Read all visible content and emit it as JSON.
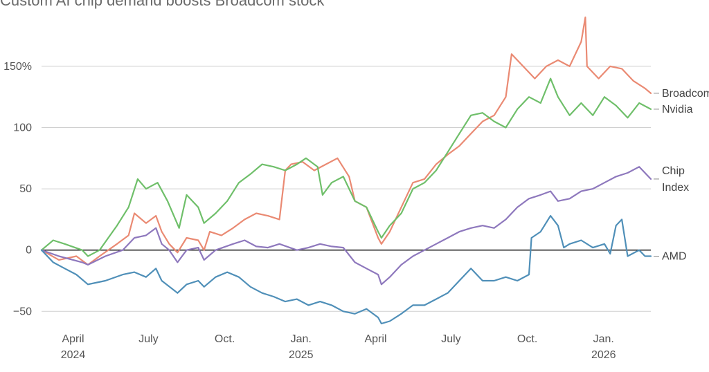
{
  "chart_data": {
    "type": "line",
    "title": "Custom AI chip demand boosts Broadcom stock",
    "xlabel": "",
    "ylabel": "",
    "ylim": [
      -60,
      190
    ],
    "yticks": [
      {
        "value": 150,
        "label": "150%"
      },
      {
        "value": 100,
        "label": "100"
      },
      {
        "value": 50,
        "label": "50"
      },
      {
        "value": 0,
        "label": "0"
      },
      {
        "value": -50,
        "label": "−50"
      }
    ],
    "xlim": [
      "2024-02-23",
      "2026-02-27"
    ],
    "xticks": [
      {
        "date": "2024-04-01",
        "label": "April",
        "year": "2024"
      },
      {
        "date": "2024-07-01",
        "label": "July",
        "year": ""
      },
      {
        "date": "2024-10-01",
        "label": "Oct.",
        "year": ""
      },
      {
        "date": "2025-01-01",
        "label": "Jan.",
        "year": "2025"
      },
      {
        "date": "2025-04-01",
        "label": "April",
        "year": ""
      },
      {
        "date": "2025-07-01",
        "label": "July",
        "year": ""
      },
      {
        "date": "2025-10-01",
        "label": "Oct.",
        "year": ""
      },
      {
        "date": "2026-01-01",
        "label": "Jan.",
        "year": "2026"
      }
    ],
    "grid": true,
    "series": [
      {
        "name": "Broadcom",
        "label_lines": [
          "Broadcom"
        ],
        "color": "#ea8a73",
        "points": [
          [
            "2024-02-23",
            0
          ],
          [
            "2024-03-15",
            -8
          ],
          [
            "2024-04-05",
            -5
          ],
          [
            "2024-04-19",
            -12
          ],
          [
            "2024-05-03",
            -5
          ],
          [
            "2024-05-24",
            5
          ],
          [
            "2024-06-07",
            12
          ],
          [
            "2024-06-14",
            30
          ],
          [
            "2024-06-28",
            22
          ],
          [
            "2024-07-10",
            28
          ],
          [
            "2024-07-17",
            15
          ],
          [
            "2024-07-26",
            5
          ],
          [
            "2024-08-05",
            -2
          ],
          [
            "2024-08-16",
            10
          ],
          [
            "2024-08-30",
            8
          ],
          [
            "2024-09-06",
            0
          ],
          [
            "2024-09-13",
            15
          ],
          [
            "2024-09-27",
            12
          ],
          [
            "2024-10-11",
            18
          ],
          [
            "2024-10-25",
            25
          ],
          [
            "2024-11-08",
            30
          ],
          [
            "2024-11-22",
            28
          ],
          [
            "2024-12-06",
            25
          ],
          [
            "2024-12-13",
            65
          ],
          [
            "2024-12-20",
            70
          ],
          [
            "2025-01-03",
            72
          ],
          [
            "2025-01-17",
            65
          ],
          [
            "2025-01-31",
            70
          ],
          [
            "2025-02-14",
            75
          ],
          [
            "2025-02-28",
            60
          ],
          [
            "2025-03-07",
            40
          ],
          [
            "2025-03-21",
            35
          ],
          [
            "2025-04-04",
            10
          ],
          [
            "2025-04-08",
            5
          ],
          [
            "2025-04-18",
            15
          ],
          [
            "2025-05-02",
            35
          ],
          [
            "2025-05-16",
            55
          ],
          [
            "2025-05-30",
            58
          ],
          [
            "2025-06-13",
            70
          ],
          [
            "2025-06-27",
            78
          ],
          [
            "2025-07-11",
            85
          ],
          [
            "2025-07-25",
            95
          ],
          [
            "2025-08-08",
            105
          ],
          [
            "2025-08-22",
            110
          ],
          [
            "2025-09-05",
            125
          ],
          [
            "2025-09-12",
            160
          ],
          [
            "2025-09-26",
            150
          ],
          [
            "2025-10-10",
            140
          ],
          [
            "2025-10-24",
            150
          ],
          [
            "2025-11-07",
            155
          ],
          [
            "2025-11-21",
            150
          ],
          [
            "2025-12-05",
            170
          ],
          [
            "2025-12-10",
            190
          ],
          [
            "2025-12-12",
            150
          ],
          [
            "2025-12-26",
            140
          ],
          [
            "2026-01-09",
            150
          ],
          [
            "2026-01-23",
            148
          ],
          [
            "2026-02-06",
            138
          ],
          [
            "2026-02-20",
            132
          ],
          [
            "2026-02-27",
            128
          ]
        ]
      },
      {
        "name": "Nvidia",
        "label_lines": [
          "Nvidia"
        ],
        "color": "#6fbf6a",
        "points": [
          [
            "2024-02-23",
            0
          ],
          [
            "2024-03-08",
            8
          ],
          [
            "2024-03-22",
            5
          ],
          [
            "2024-04-12",
            0
          ],
          [
            "2024-04-19",
            -5
          ],
          [
            "2024-05-03",
            0
          ],
          [
            "2024-05-24",
            20
          ],
          [
            "2024-06-07",
            35
          ],
          [
            "2024-06-18",
            58
          ],
          [
            "2024-06-28",
            50
          ],
          [
            "2024-07-12",
            55
          ],
          [
            "2024-07-24",
            40
          ],
          [
            "2024-08-07",
            18
          ],
          [
            "2024-08-16",
            45
          ],
          [
            "2024-08-30",
            35
          ],
          [
            "2024-09-06",
            22
          ],
          [
            "2024-09-20",
            30
          ],
          [
            "2024-10-04",
            40
          ],
          [
            "2024-10-18",
            55
          ],
          [
            "2024-11-01",
            62
          ],
          [
            "2024-11-15",
            70
          ],
          [
            "2024-11-29",
            68
          ],
          [
            "2024-12-13",
            65
          ],
          [
            "2024-12-27",
            70
          ],
          [
            "2025-01-07",
            75
          ],
          [
            "2025-01-21",
            68
          ],
          [
            "2025-01-27",
            45
          ],
          [
            "2025-02-07",
            55
          ],
          [
            "2025-02-21",
            60
          ],
          [
            "2025-03-07",
            40
          ],
          [
            "2025-03-21",
            35
          ],
          [
            "2025-04-04",
            15
          ],
          [
            "2025-04-08",
            10
          ],
          [
            "2025-04-18",
            20
          ],
          [
            "2025-05-02",
            30
          ],
          [
            "2025-05-16",
            50
          ],
          [
            "2025-05-30",
            55
          ],
          [
            "2025-06-13",
            65
          ],
          [
            "2025-06-27",
            80
          ],
          [
            "2025-07-11",
            95
          ],
          [
            "2025-07-25",
            110
          ],
          [
            "2025-08-08",
            112
          ],
          [
            "2025-08-22",
            105
          ],
          [
            "2025-09-05",
            100
          ],
          [
            "2025-09-19",
            115
          ],
          [
            "2025-10-03",
            125
          ],
          [
            "2025-10-17",
            120
          ],
          [
            "2025-10-29",
            140
          ],
          [
            "2025-11-07",
            125
          ],
          [
            "2025-11-21",
            110
          ],
          [
            "2025-12-05",
            120
          ],
          [
            "2025-12-19",
            110
          ],
          [
            "2026-01-02",
            125
          ],
          [
            "2026-01-16",
            118
          ],
          [
            "2026-01-30",
            108
          ],
          [
            "2026-02-13",
            120
          ],
          [
            "2026-02-27",
            115
          ]
        ]
      },
      {
        "name": "Chip Index",
        "label_lines": [
          "Chip",
          "Index"
        ],
        "color": "#8e78bd",
        "points": [
          [
            "2024-02-23",
            0
          ],
          [
            "2024-03-15",
            -5
          ],
          [
            "2024-04-12",
            -10
          ],
          [
            "2024-04-19",
            -12
          ],
          [
            "2024-05-10",
            -5
          ],
          [
            "2024-05-31",
            0
          ],
          [
            "2024-06-14",
            10
          ],
          [
            "2024-06-28",
            12
          ],
          [
            "2024-07-10",
            18
          ],
          [
            "2024-07-17",
            5
          ],
          [
            "2024-07-26",
            0
          ],
          [
            "2024-08-05",
            -10
          ],
          [
            "2024-08-16",
            0
          ],
          [
            "2024-08-30",
            2
          ],
          [
            "2024-09-06",
            -8
          ],
          [
            "2024-09-20",
            0
          ],
          [
            "2024-10-11",
            5
          ],
          [
            "2024-10-25",
            8
          ],
          [
            "2024-11-08",
            3
          ],
          [
            "2024-11-22",
            2
          ],
          [
            "2024-12-06",
            5
          ],
          [
            "2024-12-27",
            0
          ],
          [
            "2025-01-10",
            2
          ],
          [
            "2025-01-24",
            5
          ],
          [
            "2025-02-07",
            3
          ],
          [
            "2025-02-21",
            2
          ],
          [
            "2025-03-07",
            -10
          ],
          [
            "2025-03-21",
            -15
          ],
          [
            "2025-04-04",
            -20
          ],
          [
            "2025-04-08",
            -28
          ],
          [
            "2025-04-18",
            -22
          ],
          [
            "2025-05-02",
            -12
          ],
          [
            "2025-05-16",
            -5
          ],
          [
            "2025-05-30",
            0
          ],
          [
            "2025-06-13",
            5
          ],
          [
            "2025-06-27",
            10
          ],
          [
            "2025-07-11",
            15
          ],
          [
            "2025-07-25",
            18
          ],
          [
            "2025-08-08",
            20
          ],
          [
            "2025-08-22",
            18
          ],
          [
            "2025-09-05",
            25
          ],
          [
            "2025-09-19",
            35
          ],
          [
            "2025-10-03",
            42
          ],
          [
            "2025-10-17",
            45
          ],
          [
            "2025-10-29",
            48
          ],
          [
            "2025-11-07",
            40
          ],
          [
            "2025-11-21",
            42
          ],
          [
            "2025-12-05",
            48
          ],
          [
            "2025-12-19",
            50
          ],
          [
            "2026-01-02",
            55
          ],
          [
            "2026-01-16",
            60
          ],
          [
            "2026-01-30",
            63
          ],
          [
            "2026-02-13",
            68
          ],
          [
            "2026-02-27",
            58
          ]
        ]
      },
      {
        "name": "AMD",
        "label_lines": [
          "AMD"
        ],
        "color": "#4f8fb8",
        "points": [
          [
            "2024-02-23",
            0
          ],
          [
            "2024-03-08",
            -10
          ],
          [
            "2024-03-22",
            -15
          ],
          [
            "2024-04-05",
            -20
          ],
          [
            "2024-04-19",
            -28
          ],
          [
            "2024-05-10",
            -25
          ],
          [
            "2024-05-31",
            -20
          ],
          [
            "2024-06-14",
            -18
          ],
          [
            "2024-06-28",
            -22
          ],
          [
            "2024-07-10",
            -15
          ],
          [
            "2024-07-17",
            -25
          ],
          [
            "2024-08-05",
            -35
          ],
          [
            "2024-08-16",
            -28
          ],
          [
            "2024-08-30",
            -25
          ],
          [
            "2024-09-06",
            -30
          ],
          [
            "2024-09-20",
            -22
          ],
          [
            "2024-10-04",
            -18
          ],
          [
            "2024-10-18",
            -22
          ],
          [
            "2024-11-01",
            -30
          ],
          [
            "2024-11-15",
            -35
          ],
          [
            "2024-11-29",
            -38
          ],
          [
            "2024-12-13",
            -42
          ],
          [
            "2024-12-27",
            -40
          ],
          [
            "2025-01-10",
            -45
          ],
          [
            "2025-01-24",
            -42
          ],
          [
            "2025-02-07",
            -45
          ],
          [
            "2025-02-21",
            -50
          ],
          [
            "2025-03-07",
            -52
          ],
          [
            "2025-03-21",
            -48
          ],
          [
            "2025-04-04",
            -55
          ],
          [
            "2025-04-08",
            -60
          ],
          [
            "2025-04-18",
            -58
          ],
          [
            "2025-05-02",
            -52
          ],
          [
            "2025-05-16",
            -45
          ],
          [
            "2025-05-30",
            -45
          ],
          [
            "2025-06-13",
            -40
          ],
          [
            "2025-06-27",
            -35
          ],
          [
            "2025-07-11",
            -25
          ],
          [
            "2025-07-25",
            -15
          ],
          [
            "2025-08-08",
            -25
          ],
          [
            "2025-08-22",
            -25
          ],
          [
            "2025-09-05",
            -22
          ],
          [
            "2025-09-19",
            -25
          ],
          [
            "2025-10-03",
            -20
          ],
          [
            "2025-10-06",
            10
          ],
          [
            "2025-10-17",
            15
          ],
          [
            "2025-10-29",
            28
          ],
          [
            "2025-11-07",
            20
          ],
          [
            "2025-11-14",
            2
          ],
          [
            "2025-11-21",
            5
          ],
          [
            "2025-12-05",
            8
          ],
          [
            "2025-12-19",
            2
          ],
          [
            "2026-01-02",
            5
          ],
          [
            "2026-01-09",
            -3
          ],
          [
            "2026-01-16",
            20
          ],
          [
            "2026-01-23",
            25
          ],
          [
            "2026-01-30",
            -5
          ],
          [
            "2026-02-13",
            0
          ],
          [
            "2026-02-20",
            -5
          ],
          [
            "2026-02-27",
            -5
          ]
        ]
      }
    ]
  }
}
